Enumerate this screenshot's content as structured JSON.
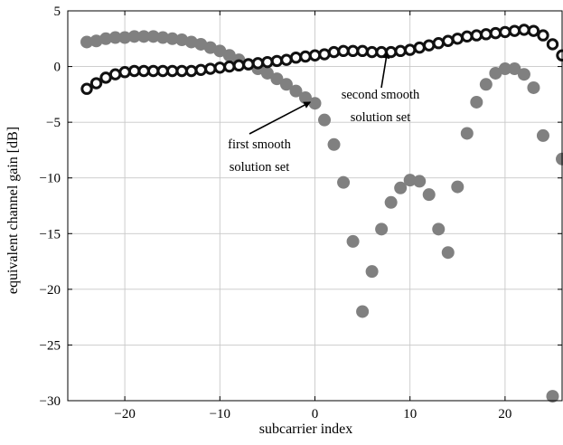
{
  "chart_data": {
    "type": "scatter",
    "xlabel": "subcarrier index",
    "ylabel": "equivalent channel gain [dB]",
    "xlim": [
      -26,
      26
    ],
    "ylim": [
      -30,
      5
    ],
    "xticks": [
      -20,
      -10,
      0,
      10,
      20
    ],
    "yticks": [
      5,
      0,
      -5,
      -10,
      -15,
      -20,
      -25,
      -30
    ],
    "xtick_labels": [
      "−20",
      "−10",
      "0",
      "10",
      "20"
    ],
    "ytick_labels": [
      "5",
      "0",
      "−5",
      "−10",
      "−15",
      "−20",
      "−25",
      "−30"
    ],
    "grid": true,
    "series": [
      {
        "name": "",
        "marker": "filled-circle",
        "color": "#808080",
        "x": [
          -24,
          -23,
          -22,
          -21,
          -20,
          -19,
          -18,
          -17,
          -16,
          -15,
          -14,
          -13,
          -12,
          -11,
          -10,
          -9,
          -8,
          -7,
          -6,
          -5,
          -4,
          -3,
          -2,
          -1,
          0,
          1,
          2,
          3,
          4,
          5,
          6,
          7,
          8,
          9,
          10,
          11,
          12,
          13,
          14,
          15,
          16,
          17,
          18,
          19,
          20,
          21,
          22,
          23,
          24,
          25,
          26
        ],
        "y": [
          2.2,
          2.3,
          2.5,
          2.6,
          2.6,
          2.7,
          2.7,
          2.7,
          2.6,
          2.5,
          2.4,
          2.2,
          2.0,
          1.7,
          1.4,
          1.0,
          0.6,
          0.2,
          -0.2,
          -0.6,
          -1.1,
          -1.6,
          -2.2,
          -2.8,
          -3.3,
          -4.8,
          -7.0,
          -10.4,
          -15.7,
          -22.0,
          -18.4,
          -14.6,
          -12.2,
          -10.9,
          -10.2,
          -10.3,
          -11.5,
          -14.6,
          -16.7,
          -10.8,
          -6.0,
          -3.2,
          -1.6,
          -0.6,
          -0.2,
          -0.2,
          -0.7,
          -1.9,
          -6.2,
          -29.6,
          -8.3
        ]
      },
      {
        "name": "",
        "marker": "open-circle",
        "color": "#111111",
        "x": [
          -24,
          -23,
          -22,
          -21,
          -20,
          -19,
          -18,
          -17,
          -16,
          -15,
          -14,
          -13,
          -12,
          -11,
          -10,
          -9,
          -8,
          -7,
          -6,
          -5,
          -4,
          -3,
          -2,
          -1,
          0,
          1,
          2,
          3,
          4,
          5,
          6,
          7,
          8,
          9,
          10,
          11,
          12,
          13,
          14,
          15,
          16,
          17,
          18,
          19,
          20,
          21,
          22,
          23,
          24,
          25,
          26
        ],
        "y": [
          -2.0,
          -1.5,
          -1.0,
          -0.7,
          -0.5,
          -0.4,
          -0.4,
          -0.4,
          -0.4,
          -0.4,
          -0.4,
          -0.4,
          -0.3,
          -0.2,
          -0.1,
          0.0,
          0.1,
          0.2,
          0.3,
          0.4,
          0.5,
          0.6,
          0.8,
          0.9,
          1.0,
          1.1,
          1.3,
          1.4,
          1.4,
          1.4,
          1.3,
          1.3,
          1.3,
          1.4,
          1.5,
          1.7,
          1.9,
          2.1,
          2.3,
          2.5,
          2.7,
          2.8,
          2.9,
          3.0,
          3.1,
          3.2,
          3.3,
          3.2,
          2.8,
          2.0,
          1.0
        ]
      }
    ],
    "annotations": [
      {
        "lines": [
          "first smooth",
          "solution set"
        ],
        "target": [
          -0.5,
          -3.2
        ]
      },
      {
        "lines": [
          "second smooth",
          "solution set"
        ],
        "target": [
          7.6,
          1.3
        ]
      }
    ]
  }
}
